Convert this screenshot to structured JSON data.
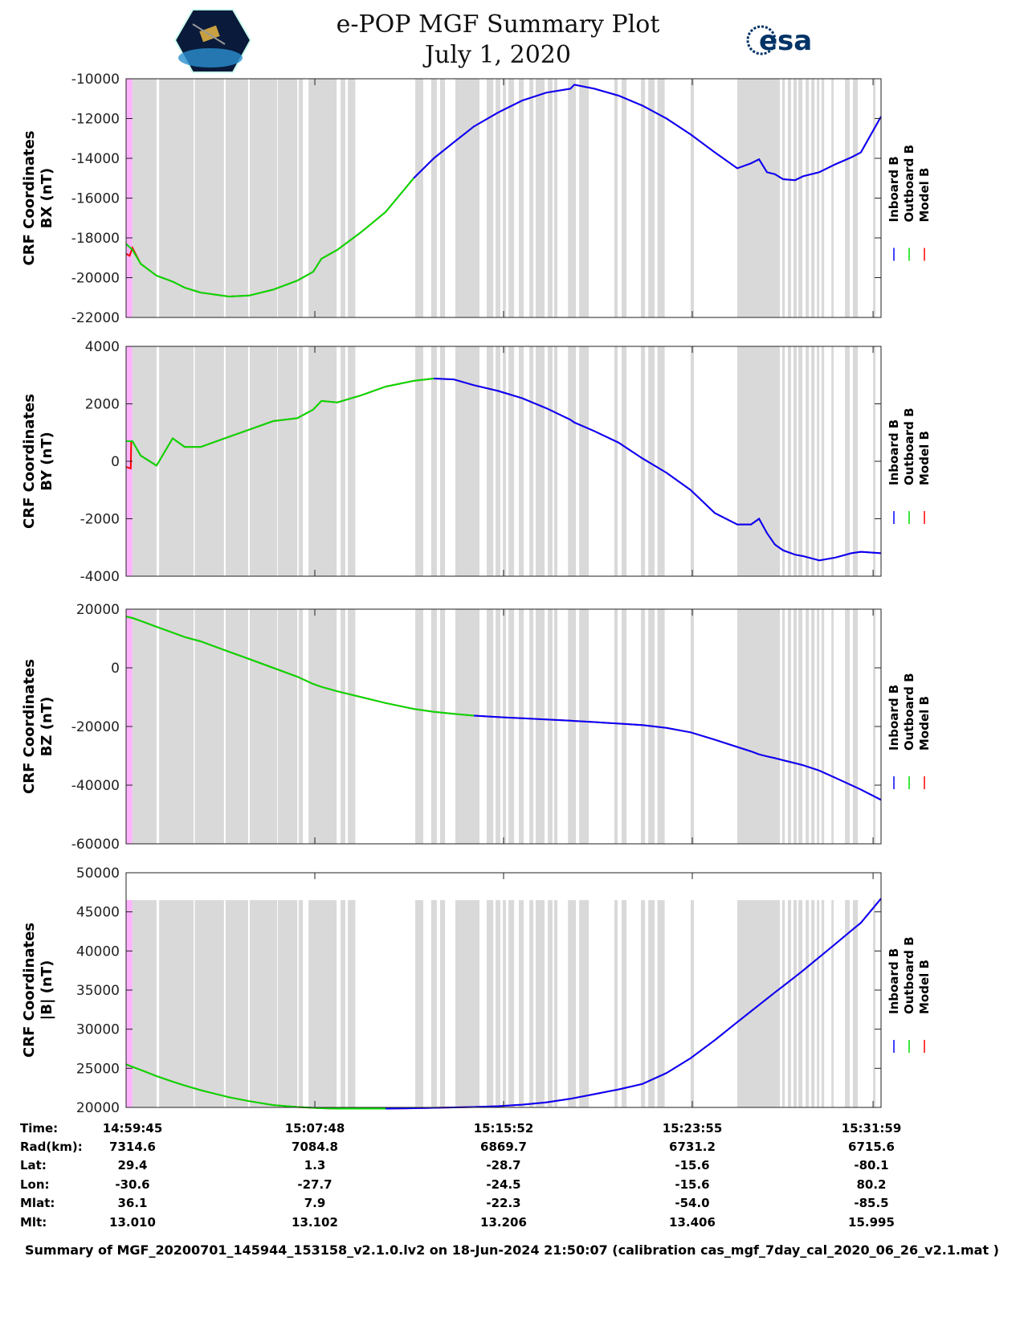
{
  "header": {
    "title_line1": "e-POP MGF Summary Plot",
    "title_line2": "July 1, 2020",
    "left_logo": "CASSIOPE",
    "right_logo": "esa"
  },
  "chart_data": [
    {
      "type": "line",
      "name": "bx",
      "ylabel_line1": "CRF Coordinates",
      "ylabel_line2": "BX (nT)",
      "ylim": [
        -22000,
        -10000
      ],
      "yticks": [
        -10000,
        -12000,
        -14000,
        -16000,
        -18000,
        -20000,
        -22000
      ],
      "outboard_until": 12.28,
      "band_top": -10000,
      "values": [
        -18300,
        -18600,
        -19300,
        -19900,
        -20200,
        -20500,
        -20750,
        -20950,
        -20900,
        -20600,
        -20150,
        -19700,
        -19050,
        -18600,
        -17700,
        -16700,
        -15000,
        -14000,
        -13200,
        -12400,
        -11700,
        -11100,
        -10700,
        -10500,
        -10300,
        -10500,
        -10850,
        -11350,
        -12000,
        -12800,
        -13700,
        -14500,
        -14250,
        -14050,
        -14700,
        -14800,
        -15050,
        -15100,
        -14900,
        -14700,
        -14300,
        -13950,
        -13700,
        -11900
      ],
      "model_start": [
        [
          0,
          -18800
        ],
        [
          0.15,
          -18900
        ],
        [
          0.27,
          -18500
        ]
      ]
    },
    {
      "type": "line",
      "name": "by",
      "ylabel_line1": "CRF Coordinates",
      "ylabel_line2": "BY (nT)",
      "ylim": [
        -4000,
        4000
      ],
      "yticks": [
        4000,
        2000,
        0,
        -2000,
        -4000
      ],
      "outboard_until": 13.4,
      "band_top": 4000,
      "values": [
        700,
        700,
        200,
        -150,
        800,
        500,
        500,
        850,
        1100,
        1400,
        1500,
        1800,
        2100,
        2050,
        2300,
        2600,
        2800,
        2880,
        2850,
        2650,
        2450,
        2200,
        1850,
        1450,
        1350,
        1050,
        650,
        100,
        -400,
        -1000,
        -1800,
        -2200,
        -2200,
        -2000,
        -2500,
        -2900,
        -3100,
        -3250,
        -3300,
        -3450,
        -3350,
        -3200,
        -3150,
        -3200
      ],
      "model_start": [
        [
          0,
          -200
        ],
        [
          0.2,
          -250
        ],
        [
          0.22,
          700
        ]
      ]
    },
    {
      "type": "line",
      "name": "bz",
      "ylabel_line1": "CRF Coordinates",
      "ylabel_line2": "BZ (nT)",
      "ylim": [
        -60000,
        20000
      ],
      "yticks": [
        20000,
        0,
        -20000,
        -40000,
        -60000
      ],
      "outboard_until": 15.2,
      "band_top": 20000,
      "values": [
        17500,
        17000,
        16000,
        14000,
        12000,
        10500,
        9000,
        5500,
        3000,
        0,
        -3000,
        -5500,
        -6500,
        -8000,
        -10000,
        -12000,
        -14000,
        -15000,
        -15700,
        -16300,
        -16800,
        -17200,
        -17600,
        -18000,
        -18100,
        -18500,
        -19000,
        -19500,
        -20500,
        -22000,
        -24500,
        -27000,
        -28500,
        -29500,
        -30200,
        -30800,
        -31500,
        -32500,
        -33200,
        -35000,
        -37500,
        -40000,
        -41500,
        -45000
      ],
      "model_start": []
    },
    {
      "type": "line",
      "name": "bmag",
      "ylabel_line1": "CRF Coordinates",
      "ylabel_line2": "|B| (nT)",
      "ylim": [
        20000,
        50000
      ],
      "yticks": [
        50000,
        45000,
        40000,
        35000,
        30000,
        25000,
        20000
      ],
      "outboard_until": 11.3,
      "band_top": 46500,
      "values": [
        25500,
        25200,
        24800,
        24000,
        23300,
        22800,
        22200,
        21300,
        20800,
        20300,
        20050,
        19950,
        19900,
        19850,
        19850,
        19850,
        19900,
        19950,
        20000,
        20050,
        20150,
        20350,
        20650,
        21100,
        21200,
        21700,
        22300,
        23000,
        24400,
        26300,
        28600,
        30900,
        32300,
        33100,
        33900,
        34700,
        35500,
        36700,
        37500,
        39200,
        40900,
        42600,
        43600,
        46700
      ],
      "model_start": []
    }
  ],
  "x_minutes_after_start": [
    0,
    0.27,
    0.62,
    1.3,
    1.99,
    2.5,
    3.19,
    4.39,
    5.25,
    6.28,
    7.31,
    7.99,
    8.34,
    9.02,
    10.05,
    11.08,
    12.28,
    13.14,
    13.99,
    14.85,
    15.88,
    16.91,
    17.94,
    18.97,
    19.14,
    20.0,
    21.03,
    22.05,
    23.08,
    24.11,
    25.14,
    26.1,
    26.69,
    27.03,
    27.37,
    27.71,
    28.06,
    28.57,
    28.91,
    29.6,
    30.29,
    30.97,
    31.38,
    32.24
  ],
  "xlim_minutes": [
    0,
    32.24
  ],
  "xtick_minutes": [
    0,
    8.06,
    16.12,
    24.18,
    31.9
  ],
  "highlight_band": [
    0,
    0.26
  ],
  "gray_bands": [
    [
      0.26,
      1.3
    ],
    [
      1.41,
      2.88
    ],
    [
      2.93,
      4.18
    ],
    [
      4.25,
      5.21
    ],
    [
      5.28,
      6.45
    ],
    [
      6.48,
      7.31
    ],
    [
      7.37,
      7.55
    ],
    [
      7.79,
      8.99
    ],
    [
      9.16,
      9.36
    ],
    [
      9.47,
      9.79
    ],
    [
      12.35,
      12.69
    ],
    [
      13.03,
      13.27
    ],
    [
      13.41,
      13.62
    ],
    [
      14.06,
      15.09
    ],
    [
      15.4,
      15.68
    ],
    [
      15.78,
      15.98
    ],
    [
      16.09,
      16.22
    ],
    [
      16.33,
      16.57
    ],
    [
      16.77,
      16.98
    ],
    [
      17.22,
      17.39
    ],
    [
      17.49,
      17.87
    ],
    [
      18.01,
      18.21
    ],
    [
      18.28,
      18.42
    ],
    [
      18.87,
      19.21
    ],
    [
      19.35,
      19.76
    ],
    [
      20.85,
      20.99
    ],
    [
      21.16,
      21.37
    ],
    [
      21.99,
      22.16
    ],
    [
      22.3,
      22.57
    ],
    [
      22.69,
      23.0
    ],
    [
      24.11,
      24.25
    ],
    [
      26.1,
      27.92
    ],
    [
      28.02,
      28.13
    ],
    [
      28.26,
      28.4
    ],
    [
      28.5,
      28.64
    ],
    [
      28.71,
      28.88
    ],
    [
      29.02,
      29.16
    ],
    [
      29.26,
      29.4
    ],
    [
      29.5,
      29.6
    ],
    [
      29.7,
      29.81
    ],
    [
      30.12,
      30.22
    ],
    [
      30.7,
      30.9
    ],
    [
      31.04,
      31.25
    ],
    [
      31.9,
      32.0
    ]
  ],
  "legend": {
    "items": [
      "Inboard B",
      "Outboard B",
      "Model B"
    ],
    "colors": [
      "#0000ff",
      "#00dd00",
      "#ff0000"
    ]
  },
  "colors": {
    "band": "#d9d9d9",
    "highlight": "#ffb3ff",
    "inboard": "#0000ff",
    "outboard": "#00dd00",
    "model": "#ff0000"
  },
  "info": {
    "labels": [
      "Time:",
      "Rad(km):",
      "Lat:",
      "Lon:",
      "Mlat:",
      "Mlt:"
    ],
    "columns": [
      [
        "14:59:45",
        "7314.6",
        "29.4",
        "-30.6",
        "36.1",
        "13.010"
      ],
      [
        "15:07:48",
        "7084.8",
        "1.3",
        "-27.7",
        "7.9",
        "13.102"
      ],
      [
        "15:15:52",
        "6869.7",
        "-28.7",
        "-24.5",
        "-22.3",
        "13.206"
      ],
      [
        "15:23:55",
        "6731.2",
        "-15.6",
        "-15.6",
        "-54.0",
        "13.406"
      ],
      [
        "15:31:59",
        "6715.6",
        "-80.1",
        "80.2",
        "-85.5",
        "15.995"
      ]
    ]
  },
  "summary": "Summary of MGF_20200701_145944_153158_v2.1.0.lv2 on 18-Jun-2024 21:50:07 (calibration cas_mgf_7day_cal_2020_06_26_v2.1.mat )"
}
